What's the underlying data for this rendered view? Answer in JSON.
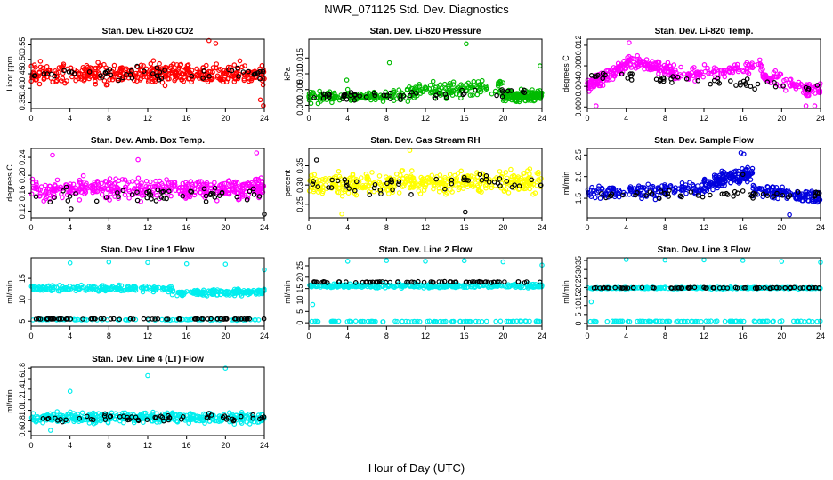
{
  "figure": {
    "title": "NWR_071125  Std. Dev. Diagnostics",
    "xlabel": "Hour of Day (UTC)"
  },
  "chart_data": [
    {
      "type": "scatter",
      "title": "Stan. Dev. Li-820 CO2",
      "xlabel": "",
      "ylabel": "Licor ppm",
      "xlim": [
        0,
        24
      ],
      "xticks": [
        0,
        4,
        8,
        12,
        16,
        20,
        24
      ],
      "ylim": [
        0.33,
        0.57
      ],
      "yticks": [
        0.35,
        0.4,
        0.45,
        0.5,
        0.55
      ],
      "ytick_labels": [
        "0.35",
        "0.40",
        "0.45",
        "0.50",
        "0.55"
      ],
      "grid": false,
      "series": [
        {
          "color": "#ff0000",
          "count": 420,
          "seed": 11,
          "segments": [
            {
              "x": [
                0,
                24
              ],
              "center": [
                0.45,
                0.45
              ],
              "spread": 0.05
            }
          ],
          "outliers": [
            [
              18.3,
              0.565
            ],
            [
              19.0,
              0.555
            ],
            [
              23.9,
              0.34
            ],
            [
              23.6,
              0.36
            ]
          ]
        },
        {
          "color": "#000000",
          "count": 50,
          "seed": 12,
          "segments": [
            {
              "x": [
                0.3,
                24
              ],
              "center": [
                0.45,
                0.45
              ],
              "spread": 0.035
            }
          ]
        }
      ]
    },
    {
      "type": "scatter",
      "title": "Stan. Dev. Li-820 Pressure",
      "xlabel": "",
      "ylabel": "kPa",
      "xlim": [
        0,
        24
      ],
      "xticks": [
        0,
        4,
        8,
        12,
        16,
        20,
        24
      ],
      "ylim": [
        -0.001,
        0.021
      ],
      "yticks": [
        0.0,
        0.005,
        0.01,
        0.015
      ],
      "ytick_labels": [
        "0.000",
        "0.005",
        "0.010",
        "0.015"
      ],
      "grid": false,
      "series": [
        {
          "color": "#00bb00",
          "count": 420,
          "seed": 21,
          "segments": [
            {
              "x": [
                0,
                10
              ],
              "center": [
                0.0025,
                0.003
              ],
              "spread": 0.0025
            },
            {
              "x": [
                10,
                20
              ],
              "center": [
                0.004,
                0.006
              ],
              "spread": 0.004
            },
            {
              "x": [
                20,
                24
              ],
              "center": [
                0.003,
                0.003
              ],
              "spread": 0.0025
            }
          ],
          "outliers": [
            [
              16.2,
              0.0195
            ],
            [
              8.3,
              0.0135
            ],
            [
              23.8,
              0.0125
            ],
            [
              3.9,
              0.008
            ]
          ]
        },
        {
          "color": "#000000",
          "count": 50,
          "seed": 22,
          "segments": [
            {
              "x": [
                0.3,
                24
              ],
              "center": [
                0.003,
                0.004
              ],
              "spread": 0.002
            }
          ]
        }
      ]
    },
    {
      "type": "scatter",
      "title": "Stan. Dev. Li-820 Temp.",
      "xlabel": "",
      "ylabel": "degrees C",
      "xlim": [
        0,
        24
      ],
      "xticks": [
        0,
        4,
        8,
        12,
        16,
        20,
        24
      ],
      "ylim": [
        -0.0003,
        0.0132
      ],
      "yticks": [
        0.0,
        0.004,
        0.008,
        0.012
      ],
      "ytick_labels": [
        "0.000",
        "0.004",
        "0.008",
        "0.012"
      ],
      "grid": false,
      "series": [
        {
          "color": "#ff00ff",
          "count": 420,
          "seed": 31,
          "segments": [
            {
              "x": [
                0,
                4
              ],
              "center": [
                0.004,
                0.008
              ],
              "spread": 0.002
            },
            {
              "x": [
                4,
                9
              ],
              "center": [
                0.009,
                0.007
              ],
              "spread": 0.0018
            },
            {
              "x": [
                9,
                18
              ],
              "center": [
                0.006,
                0.008
              ],
              "spread": 0.0018
            },
            {
              "x": [
                18,
                24
              ],
              "center": [
                0.006,
                0.003
              ],
              "spread": 0.002
            }
          ],
          "outliers": [
            [
              4.3,
              0.0125
            ],
            [
              0.9,
              0.0002
            ],
            [
              22.5,
              0.0002
            ],
            [
              23.4,
              0.0002
            ]
          ]
        },
        {
          "color": "#000000",
          "count": 50,
          "seed": 32,
          "segments": [
            {
              "x": [
                0.3,
                24
              ],
              "center": [
                0.006,
                0.004
              ],
              "spread": 0.0015
            }
          ]
        }
      ]
    },
    {
      "type": "scatter",
      "title": "Stan. Dev. Amb. Box Temp.",
      "xlabel": "",
      "ylabel": "degrees C",
      "xlim": [
        0,
        24
      ],
      "xticks": [
        0,
        4,
        8,
        12,
        16,
        20,
        24
      ],
      "ylim": [
        0.105,
        0.26
      ],
      "yticks": [
        0.12,
        0.16,
        0.2,
        0.24
      ],
      "ytick_labels": [
        "0.12",
        "0.16",
        "0.20",
        "0.24"
      ],
      "grid": false,
      "series": [
        {
          "color": "#ff00ff",
          "count": 420,
          "seed": 41,
          "segments": [
            {
              "x": [
                0,
                24
              ],
              "center": [
                0.17,
                0.17
              ],
              "spread": 0.032
            }
          ],
          "outliers": [
            [
              2.2,
              0.245
            ],
            [
              23.2,
              0.25
            ],
            [
              11.0,
              0.235
            ]
          ]
        },
        {
          "color": "#000000",
          "count": 50,
          "seed": 42,
          "segments": [
            {
              "x": [
                0.3,
                24
              ],
              "center": [
                0.155,
                0.155
              ],
              "spread": 0.022
            }
          ],
          "outliers": [
            [
              24.0,
              0.113
            ],
            [
              4.1,
              0.125
            ]
          ]
        }
      ]
    },
    {
      "type": "scatter",
      "title": "Stan. Dev. Gas Stream RH",
      "xlabel": "",
      "ylabel": "percent",
      "xlim": [
        0,
        24
      ],
      "xticks": [
        0,
        4,
        8,
        12,
        16,
        20,
        24
      ],
      "ylim": [
        0.215,
        0.395
      ],
      "yticks": [
        0.25,
        0.3,
        0.35
      ],
      "ytick_labels": [
        "0.25",
        "0.30",
        "0.35"
      ],
      "grid": false,
      "series": [
        {
          "color": "#ffff00",
          "count": 420,
          "seed": 51,
          "segments": [
            {
              "x": [
                0,
                24
              ],
              "center": [
                0.3,
                0.31
              ],
              "spread": 0.04
            }
          ],
          "outliers": [
            [
              10.4,
              0.39
            ],
            [
              3.4,
              0.225
            ]
          ]
        },
        {
          "color": "#000000",
          "count": 50,
          "seed": 52,
          "segments": [
            {
              "x": [
                0.3,
                24
              ],
              "center": [
                0.3,
                0.31
              ],
              "spread": 0.035
            }
          ],
          "outliers": [
            [
              0.8,
              0.365
            ],
            [
              16.1,
              0.23
            ]
          ]
        }
      ]
    },
    {
      "type": "scatter",
      "title": "Stan. Dev. Sample Flow",
      "xlabel": "",
      "ylabel": "ml/min",
      "xlim": [
        0,
        24
      ],
      "xticks": [
        0,
        4,
        8,
        12,
        16,
        20,
        24
      ],
      "ylim": [
        1.05,
        2.65
      ],
      "yticks": [
        1.5,
        2.0,
        2.5
      ],
      "ytick_labels": [
        "1.5",
        "2.0",
        "2.5"
      ],
      "grid": false,
      "series": [
        {
          "color": "#0000dd",
          "count": 420,
          "seed": 61,
          "segments": [
            {
              "x": [
                0,
                12
              ],
              "center": [
                1.65,
                1.7
              ],
              "spread": 0.22
            },
            {
              "x": [
                12,
                17
              ],
              "center": [
                1.8,
                2.1
              ],
              "spread": 0.28
            },
            {
              "x": [
                17,
                24
              ],
              "center": [
                1.7,
                1.5
              ],
              "spread": 0.2
            }
          ],
          "outliers": [
            [
              15.8,
              2.55
            ],
            [
              16.1,
              2.52
            ],
            [
              20.8,
              1.12
            ]
          ]
        },
        {
          "color": "#000000",
          "count": 50,
          "seed": 62,
          "segments": [
            {
              "x": [
                0.3,
                24
              ],
              "center": [
                1.6,
                1.6
              ],
              "spread": 0.15
            }
          ],
          "outliers": [
            [
              16.0,
              2.05
            ]
          ]
        }
      ]
    },
    {
      "type": "scatter",
      "title": "Stan. Dev. Line 1 Flow",
      "xlabel": "",
      "ylabel": "ml/min",
      "xlim": [
        0,
        24
      ],
      "xticks": [
        0,
        4,
        8,
        12,
        16,
        20,
        24
      ],
      "ylim": [
        3.8,
        19.8
      ],
      "yticks": [
        5,
        10,
        15
      ],
      "ytick_labels": [
        "5",
        "10",
        "15"
      ],
      "grid": false,
      "series": [
        {
          "color": "#00eeee",
          "count": 360,
          "seed": 71,
          "segments": [
            {
              "x": [
                0,
                14.5
              ],
              "center": [
                12.8,
                12.5
              ],
              "spread": 1.0
            },
            {
              "x": [
                14.5,
                24
              ],
              "center": [
                11.5,
                11.8
              ],
              "spread": 1.1
            }
          ],
          "outliers": [
            [
              4.0,
              18.6
            ],
            [
              8.0,
              18.8
            ],
            [
              12.0,
              18.7
            ],
            [
              16.0,
              18.4
            ],
            [
              20.0,
              18.3
            ],
            [
              24.0,
              17.0
            ]
          ]
        },
        {
          "color": "#00eeee",
          "count": 80,
          "seed": 72,
          "segments": [
            {
              "x": [
                0,
                24
              ],
              "center": [
                5.3,
                5.3
              ],
              "spread": 0.15
            }
          ]
        },
        {
          "color": "#000000",
          "count": 70,
          "seed": 73,
          "segments": [
            {
              "x": [
                0.3,
                24
              ],
              "center": [
                5.5,
                5.5
              ],
              "spread": 0.1
            }
          ]
        }
      ]
    },
    {
      "type": "scatter",
      "title": "Stan. Dev. Line 2 Flow",
      "xlabel": "",
      "ylabel": "ml/min",
      "xlim": [
        0,
        24
      ],
      "xticks": [
        0,
        4,
        8,
        12,
        16,
        20,
        24
      ],
      "ylim": [
        -1.5,
        28.5
      ],
      "yticks": [
        0,
        5,
        10,
        15,
        20,
        25
      ],
      "ytick_labels": [
        "0",
        "5",
        "10",
        "15",
        "20",
        "25"
      ],
      "grid": false,
      "series": [
        {
          "color": "#00eeee",
          "count": 320,
          "seed": 81,
          "segments": [
            {
              "x": [
                0,
                24
              ],
              "center": [
                16.2,
                16.2
              ],
              "spread": 1.4
            }
          ],
          "outliers": [
            [
              0.4,
              8.0
            ],
            [
              4.0,
              27.0
            ],
            [
              8.0,
              27.3
            ],
            [
              12.0,
              27.0
            ],
            [
              16.0,
              27.2
            ],
            [
              20.0,
              26.7
            ],
            [
              24.0,
              25.3
            ]
          ]
        },
        {
          "color": "#00eeee",
          "count": 90,
          "seed": 82,
          "segments": [
            {
              "x": [
                0,
                24
              ],
              "center": [
                0.6,
                0.6
              ],
              "spread": 0.2
            }
          ]
        },
        {
          "color": "#000000",
          "count": 70,
          "seed": 83,
          "segments": [
            {
              "x": [
                0.3,
                24
              ],
              "center": [
                17.9,
                17.9
              ],
              "spread": 0.35
            }
          ]
        }
      ]
    },
    {
      "type": "scatter",
      "title": "Stan. Dev. Line 3 Flow",
      "xlabel": "",
      "ylabel": "ml/min",
      "xlim": [
        0,
        24
      ],
      "xticks": [
        0,
        4,
        8,
        12,
        16,
        20,
        24
      ],
      "ylim": [
        -1.5,
        36.5
      ],
      "yticks": [
        0,
        5,
        10,
        15,
        20,
        25,
        30,
        35
      ],
      "ytick_labels": [
        "0",
        "5",
        "10",
        "15",
        "20",
        "25",
        "30",
        "35"
      ],
      "grid": false,
      "series": [
        {
          "color": "#00eeee",
          "count": 300,
          "seed": 91,
          "segments": [
            {
              "x": [
                0,
                24
              ],
              "center": [
                19.7,
                19.7
              ],
              "spread": 0.7
            }
          ],
          "outliers": [
            [
              0.4,
              12.0
            ],
            [
              4.0,
              35.5
            ],
            [
              8.0,
              35.2
            ],
            [
              12.0,
              35.3
            ],
            [
              16.0,
              35.0
            ],
            [
              20.0,
              34.5
            ],
            [
              24.0,
              34.0
            ]
          ]
        },
        {
          "color": "#00eeee",
          "count": 90,
          "seed": 92,
          "segments": [
            {
              "x": [
                0,
                24
              ],
              "center": [
                1.2,
                1.2
              ],
              "spread": 0.3
            }
          ]
        },
        {
          "color": "#000000",
          "count": 70,
          "seed": 93,
          "segments": [
            {
              "x": [
                0.5,
                24
              ],
              "center": [
                19.8,
                19.8
              ],
              "spread": 0.35
            }
          ]
        }
      ]
    },
    {
      "type": "scatter",
      "title": "Stan. Dev. Line 4 (LT) Flow",
      "xlabel": "",
      "ylabel": "ml/min",
      "xlim": [
        0,
        24
      ],
      "xticks": [
        0,
        4,
        8,
        12,
        16,
        20,
        24
      ],
      "ylim": [
        0.52,
        1.82
      ],
      "yticks": [
        0.6,
        0.8,
        1.0,
        1.2,
        1.4,
        1.6,
        1.8
      ],
      "ytick_labels": [
        "0.6",
        "0.8",
        "1.0",
        "1.2",
        "1.4",
        "1.6",
        "1.8"
      ],
      "grid": false,
      "series": [
        {
          "color": "#00eeee",
          "count": 420,
          "seed": 101,
          "segments": [
            {
              "x": [
                0,
                24
              ],
              "center": [
                0.86,
                0.86
              ],
              "spread": 0.14
            }
          ],
          "outliers": [
            [
              4.0,
              1.36
            ],
            [
              12.0,
              1.66
            ],
            [
              20.0,
              1.8
            ],
            [
              2.0,
              0.62
            ]
          ]
        },
        {
          "color": "#000000",
          "count": 55,
          "seed": 102,
          "segments": [
            {
              "x": [
                0.3,
                24
              ],
              "center": [
                0.86,
                0.86
              ],
              "spread": 0.1
            }
          ]
        }
      ]
    }
  ]
}
